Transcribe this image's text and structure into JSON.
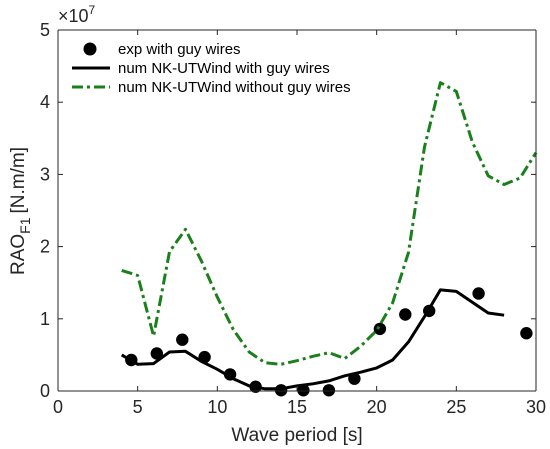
{
  "chart_data": {
    "type": "line",
    "xlabel": "Wave period [s]",
    "ylabel": "RAO",
    "ylabel_subscript": "F1",
    "ylabel_unit": "[N.m/m]",
    "y_exponent_label": "×10",
    "y_exponent": "7",
    "xlim": [
      0,
      30
    ],
    "ylim": [
      0,
      5
    ],
    "x_ticks": [
      0,
      5,
      10,
      15,
      20,
      25,
      30
    ],
    "y_ticks": [
      0,
      1,
      2,
      3,
      4,
      5
    ],
    "grid": false,
    "legend_position": "top-left",
    "series": [
      {
        "name": "exp with guy wires",
        "style": "markers",
        "color": "#000000",
        "x": [
          4.6,
          6.2,
          7.8,
          9.2,
          10.8,
          12.4,
          14.0,
          15.4,
          17.0,
          18.6,
          20.2,
          21.8,
          23.3,
          26.4,
          29.4
        ],
        "y": [
          0.43,
          0.52,
          0.71,
          0.47,
          0.23,
          0.06,
          0.01,
          0.01,
          0.01,
          0.17,
          0.86,
          1.06,
          1.11,
          1.35,
          0.8
        ]
      },
      {
        "name": "num NK-UTWind with guy wires",
        "style": "solid",
        "color": "#000000",
        "x": [
          4.0,
          5.0,
          6.0,
          7.0,
          8.0,
          9.0,
          10.0,
          11.0,
          12.0,
          13.0,
          14.0,
          15.0,
          16.0,
          17.0,
          18.0,
          19.0,
          20.0,
          21.0,
          22.0,
          23.0,
          24.0,
          25.0,
          26.0,
          27.0,
          28.0
        ],
        "y": [
          0.5,
          0.37,
          0.38,
          0.54,
          0.55,
          0.41,
          0.3,
          0.17,
          0.07,
          0.03,
          0.03,
          0.07,
          0.1,
          0.14,
          0.21,
          0.26,
          0.32,
          0.43,
          0.68,
          1.03,
          1.4,
          1.38,
          1.23,
          1.08,
          1.05
        ]
      },
      {
        "name": "num NK-UTWind without guy wires",
        "style": "dashdot",
        "color": "#1b7f1b",
        "x": [
          4.0,
          5.0,
          6.0,
          7.0,
          8.0,
          9.0,
          10.0,
          11.0,
          12.0,
          13.0,
          14.0,
          15.0,
          16.0,
          17.0,
          18.0,
          19.0,
          20.0,
          21.0,
          22.0,
          23.0,
          24.0,
          25.0,
          26.0,
          27.0,
          28.0,
          29.0,
          30.0
        ],
        "y": [
          1.67,
          1.6,
          0.76,
          1.93,
          2.24,
          1.8,
          1.3,
          0.85,
          0.54,
          0.39,
          0.37,
          0.42,
          0.48,
          0.53,
          0.45,
          0.62,
          0.84,
          1.22,
          1.92,
          3.38,
          4.27,
          4.15,
          3.45,
          2.98,
          2.86,
          2.95,
          3.3
        ]
      }
    ]
  }
}
